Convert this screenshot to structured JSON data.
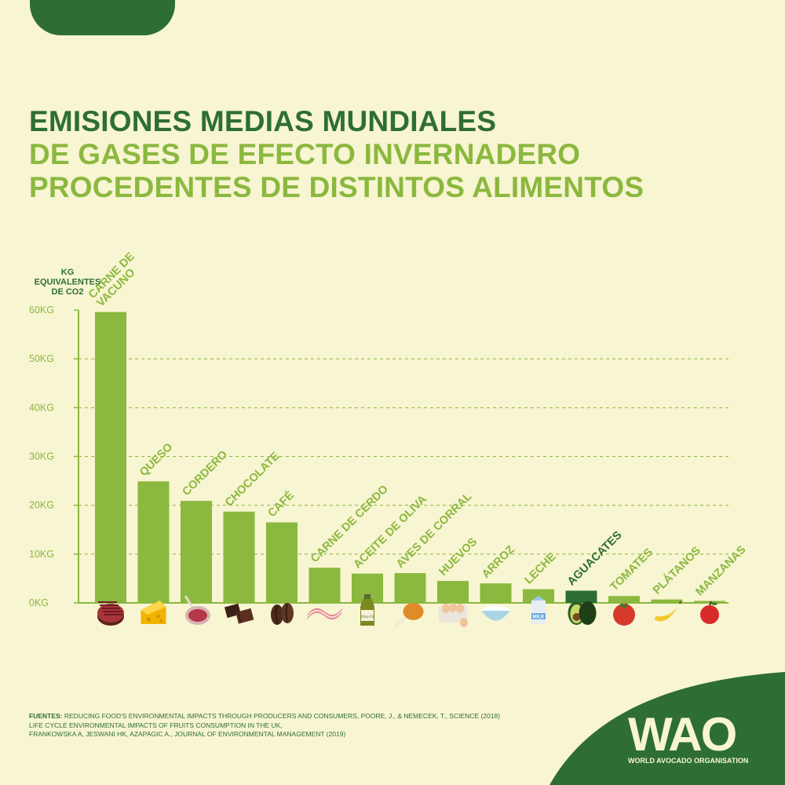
{
  "header": {
    "title_line1": "EMISIONES MEDIAS MUNDIALES",
    "title_line2": "DE GASES DE EFECTO INVERNADERO",
    "title_line3": "PROCEDENTES DE DISTINTOS ALIMENTOS"
  },
  "colors": {
    "background": "#f8f5d2",
    "dark_green": "#2e6e36",
    "light_green": "#8bb83f",
    "highlight_bar": "#2e6e36"
  },
  "chart_data": {
    "type": "bar",
    "title": "EMISIONES MEDIAS MUNDIALES DE GASES DE EFECTO INVERNADERO PROCEDENTES DE DISTINTOS ALIMENTOS",
    "ylabel_lines": [
      "KG",
      "EQUIVALENTES",
      "DE CO2"
    ],
    "xlabel": "",
    "ylim": [
      0,
      60
    ],
    "yticks": [
      0,
      10,
      20,
      30,
      40,
      50,
      60
    ],
    "ytick_labels": [
      "0KG",
      "10KG",
      "20KG",
      "30KG",
      "40KG",
      "50KG",
      "60KG"
    ],
    "grid": "dashed horizontal",
    "categories": [
      {
        "label": "CARNE DE VACUNO",
        "lines": [
          "CARNE DE",
          "VACUNO"
        ],
        "value": 59.6,
        "icon": "steak-icon",
        "highlight": false
      },
      {
        "label": "QUESO",
        "lines": [
          "QUESO"
        ],
        "value": 24.9,
        "icon": "cheese-icon",
        "highlight": false
      },
      {
        "label": "CORDERO",
        "lines": [
          "CORDERO"
        ],
        "value": 20.9,
        "icon": "lamb-chop-icon",
        "highlight": false
      },
      {
        "label": "CHOCOLATE",
        "lines": [
          "CHOCOLATE"
        ],
        "value": 18.7,
        "icon": "chocolate-icon",
        "highlight": false
      },
      {
        "label": "CAFÉ",
        "lines": [
          "CAFÉ"
        ],
        "value": 16.5,
        "icon": "coffee-bean-icon",
        "highlight": false
      },
      {
        "label": "CARNE DE CERDO",
        "lines": [
          "CARNE DE CERDO"
        ],
        "value": 7.2,
        "icon": "bacon-icon",
        "highlight": false
      },
      {
        "label": "ACEITE DE OLIVA",
        "lines": [
          "ACEITE DE OLIVA"
        ],
        "value": 6.0,
        "icon": "olive-oil-bottle-icon",
        "highlight": false
      },
      {
        "label": "AVES DE CORRAL",
        "lines": [
          "AVES DE CORRAL"
        ],
        "value": 6.1,
        "icon": "chicken-leg-icon",
        "highlight": false
      },
      {
        "label": "HUEVOS",
        "lines": [
          "HUEVOS"
        ],
        "value": 4.5,
        "icon": "eggs-icon",
        "highlight": false
      },
      {
        "label": "ARROZ",
        "lines": [
          "ARROZ"
        ],
        "value": 4.0,
        "icon": "rice-bowl-icon",
        "highlight": false
      },
      {
        "label": "LECHE",
        "lines": [
          "LECHE"
        ],
        "value": 2.8,
        "icon": "milk-carton-icon",
        "highlight": false
      },
      {
        "label": "AGUACATES",
        "lines": [
          "AGUACATES"
        ],
        "value": 2.5,
        "icon": "avocado-icon",
        "highlight": true
      },
      {
        "label": "TOMATES",
        "lines": [
          "TOMATES"
        ],
        "value": 1.4,
        "icon": "tomato-icon",
        "highlight": false
      },
      {
        "label": "PLÁTANOS",
        "lines": [
          "PLÁTANOS"
        ],
        "value": 0.7,
        "icon": "banana-icon",
        "highlight": false
      },
      {
        "label": "MANZANAS",
        "lines": [
          "MANZANAS"
        ],
        "value": 0.4,
        "icon": "apple-icon",
        "highlight": false
      }
    ],
    "milk_icon_text": "MILK",
    "oil_icon_text": "Olive Oil",
    "legend": "none"
  },
  "footer": {
    "sources_label": "FUENTES:",
    "line1": "REDUCING FOOD'S ENVIRONMENTAL IMPACTS THROUGH PRODUCERS AND CONSUMERS, POORE, J., & NEMECEK, T., SCIENCE (2018)",
    "line2": "LIFE CYCLE ENVIRONMENTAL IMPACTS OF FRUITS CONSUMPTION IN THE UK,",
    "line3": "FRANKOWSKA A, JESWANI HK, AZAPAGIC A., JOURNAL OF ENVIRONMENTAL MANAGEMENT (2019)"
  },
  "logo": {
    "mark": "WAO",
    "name": "WORLD AVOCADO ORGANISATION"
  }
}
